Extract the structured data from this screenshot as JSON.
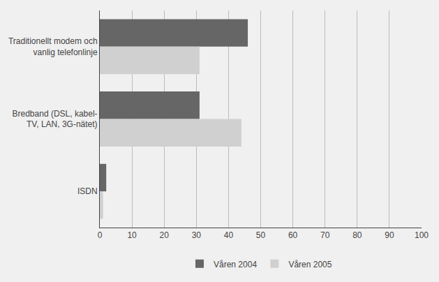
{
  "chart_data": {
    "type": "bar",
    "orientation": "horizontal",
    "categories": [
      "Traditionellt modem och\nvanlig telefonlinje",
      "Bredband (DSL, kabel-\nTV, LAN, 3G-nätet)",
      "ISDN"
    ],
    "series": [
      {
        "name": "Våren 2004",
        "color": "#666666",
        "values": [
          46,
          31,
          2
        ]
      },
      {
        "name": "Våren 2005",
        "color": "#d0d0d0",
        "values": [
          31,
          44,
          1
        ]
      }
    ],
    "xlim": [
      0,
      100
    ],
    "xticks": [
      0,
      10,
      20,
      30,
      40,
      50,
      60,
      70,
      80,
      90,
      100
    ],
    "grid": true,
    "legend": "bottom"
  }
}
